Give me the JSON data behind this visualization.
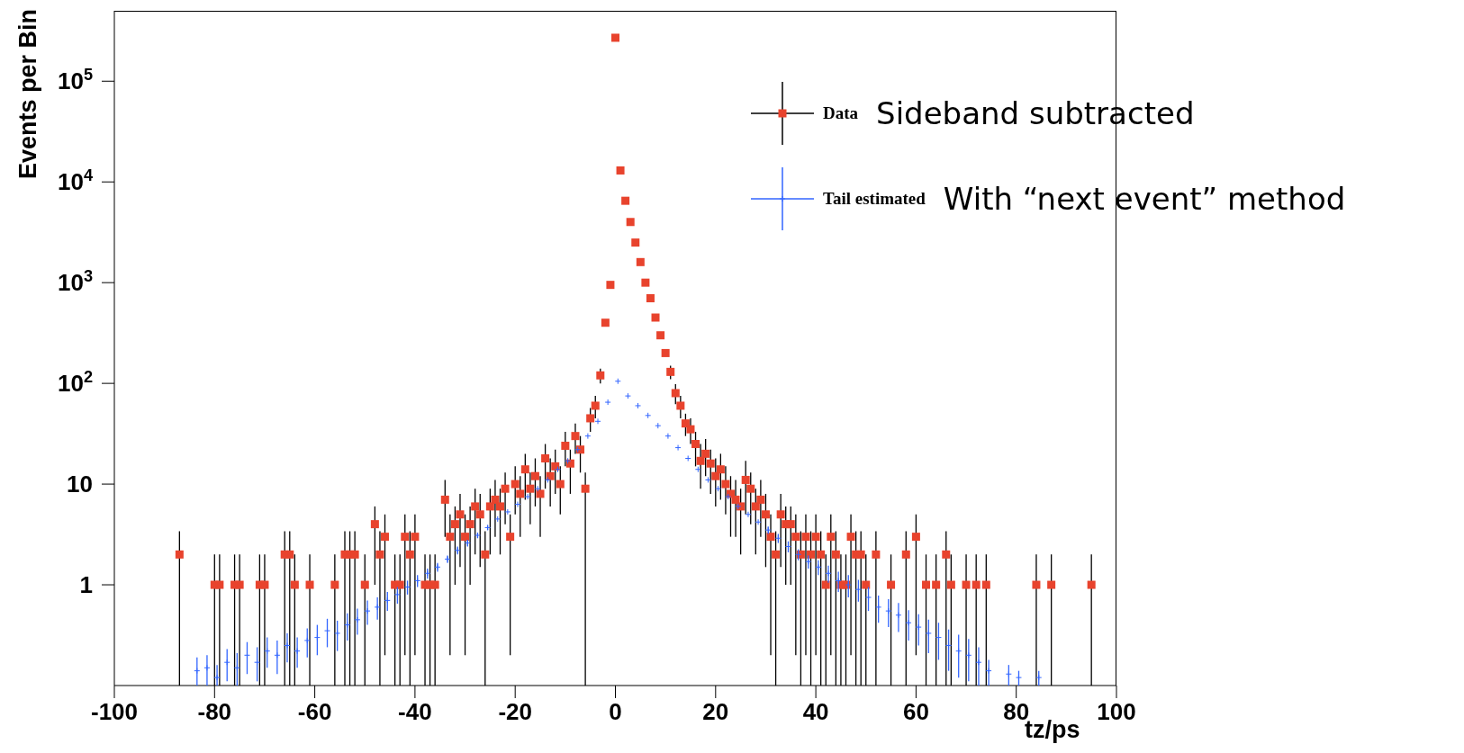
{
  "chart_data": {
    "type": "scatter",
    "xlabel": "tz/ps",
    "ylabel": "Events per Bin",
    "annotations": [
      "Sideband subtracted",
      "With “next event” method"
    ],
    "xlim": [
      -100,
      100
    ],
    "xticks": [
      -100,
      -80,
      -60,
      -40,
      -20,
      0,
      20,
      40,
      60,
      80,
      100
    ],
    "ylim": [
      0.1,
      500000
    ],
    "yticks": [
      {
        "value": 1,
        "label": "1"
      },
      {
        "value": 10,
        "label": "10"
      },
      {
        "value": 100,
        "label": "10$^{2}$"
      },
      {
        "value": 1000,
        "label": "10$^{3}$"
      },
      {
        "value": 10000,
        "label": "10$^{4}$"
      },
      {
        "value": 100000,
        "label": "10$^{5}$"
      }
    ],
    "log": "y",
    "grid": false,
    "legend": "top right",
    "series": [
      {
        "name": "Data",
        "color": "#e8432d",
        "marker": "square",
        "x": [
          -87,
          -80,
          -79,
          -76,
          -75,
          -71,
          -70,
          -66,
          -65,
          -64,
          -61,
          -56,
          -54,
          -53,
          -52,
          -50,
          -48,
          -47,
          -46,
          -44,
          -43,
          -42,
          -41,
          -40,
          -38,
          -37,
          -36,
          -34,
          -33,
          -32,
          -31,
          -30,
          -29,
          -28,
          -27,
          -26,
          -25,
          -24,
          -23,
          -22,
          -21,
          -20,
          -19,
          -18,
          -17,
          -16,
          -15,
          -14,
          -13,
          -12,
          -11,
          -10,
          -9,
          -8,
          -7,
          -6,
          -5,
          -4,
          -3,
          -2,
          -1,
          0,
          1,
          2,
          3,
          4,
          5,
          6,
          7,
          8,
          9,
          10,
          11,
          12,
          13,
          14,
          15,
          16,
          17,
          18,
          19,
          20,
          21,
          22,
          23,
          24,
          25,
          26,
          27,
          28,
          29,
          30,
          31,
          32,
          33,
          34,
          35,
          36,
          37,
          38,
          39,
          40,
          41,
          42,
          43,
          44,
          45,
          46,
          47,
          48,
          49,
          50,
          52,
          55,
          58,
          60,
          62,
          64,
          66,
          67,
          70,
          72,
          74,
          84,
          87,
          95
        ],
        "values": [
          2,
          1,
          1,
          1,
          1,
          1,
          1,
          2,
          2,
          1,
          1,
          1,
          2,
          2,
          2,
          1,
          4,
          2,
          3,
          1,
          1,
          3,
          2,
          3,
          1,
          1,
          1,
          7,
          3,
          4,
          5,
          3,
          4,
          6,
          5,
          2,
          6,
          7,
          6,
          9,
          3,
          10,
          8,
          14,
          9,
          12,
          8,
          18,
          12,
          15,
          10,
          24,
          16,
          30,
          22,
          9,
          45,
          60,
          120,
          400,
          950,
          270000,
          13000,
          6500,
          4000,
          2500,
          1600,
          1000,
          700,
          450,
          300,
          200,
          130,
          80,
          60,
          40,
          35,
          25,
          17,
          20,
          16,
          12,
          14,
          10,
          8,
          7,
          6,
          11,
          9,
          6,
          7,
          5,
          3,
          2,
          5,
          4,
          4,
          3,
          2,
          3,
          2,
          3,
          2,
          1,
          3,
          2,
          1,
          1,
          3,
          2,
          2,
          1,
          2,
          1,
          2,
          3,
          1,
          1,
          2,
          1,
          1,
          1,
          1,
          1,
          1,
          1
        ],
        "errors": [
          [
            0.1,
            3.4
          ],
          [
            0.1,
            2
          ],
          [
            0.1,
            2
          ],
          [
            0.1,
            2
          ],
          [
            0.1,
            2
          ],
          [
            0.1,
            2
          ],
          [
            0.1,
            2
          ],
          [
            0.1,
            3.4
          ],
          [
            0.1,
            3.4
          ],
          [
            0.1,
            2
          ],
          [
            0.1,
            2
          ],
          [
            0.1,
            2
          ],
          [
            0.1,
            3.4
          ],
          [
            0.1,
            3.4
          ],
          [
            0.1,
            3.4
          ],
          [
            0.1,
            2
          ],
          [
            1,
            6
          ],
          [
            0.1,
            3.4
          ],
          [
            0.2,
            5
          ],
          [
            0.1,
            2
          ],
          [
            0.1,
            2
          ],
          [
            0.2,
            5
          ],
          [
            0.1,
            3.4
          ],
          [
            0.2,
            5
          ],
          [
            0.1,
            2
          ],
          [
            0.1,
            2
          ],
          [
            0.1,
            2
          ],
          [
            3,
            11
          ],
          [
            0.2,
            5
          ],
          [
            1,
            6
          ],
          [
            1.5,
            8
          ],
          [
            0.2,
            5
          ],
          [
            1,
            6
          ],
          [
            2,
            9
          ],
          [
            1.5,
            8
          ],
          [
            0.1,
            3.4
          ],
          [
            2,
            9
          ],
          [
            3,
            11
          ],
          [
            2,
            9
          ],
          [
            4,
            13
          ],
          [
            0.2,
            5
          ],
          [
            5,
            15
          ],
          [
            3,
            12
          ],
          [
            7,
            20
          ],
          [
            4,
            13
          ],
          [
            6,
            18
          ],
          [
            3,
            12
          ],
          [
            9,
            25
          ],
          [
            6,
            18
          ],
          [
            8,
            22
          ],
          [
            5,
            15
          ],
          [
            15,
            33
          ],
          [
            8,
            22
          ],
          [
            20,
            40
          ],
          [
            13,
            30
          ],
          [
            0.1,
            13
          ],
          [
            33,
            57
          ],
          [
            45,
            75
          ],
          [
            100,
            140
          ],
          null,
          null,
          null,
          null,
          null,
          null,
          null,
          null,
          null,
          null,
          null,
          null,
          null,
          [
            110,
            150
          ],
          [
            62,
            98
          ],
          [
            45,
            75
          ],
          [
            30,
            50
          ],
          [
            25,
            45
          ],
          [
            15,
            33
          ],
          [
            9,
            25
          ],
          [
            12,
            28
          ],
          [
            8,
            22
          ],
          [
            6,
            18
          ],
          [
            7,
            20
          ],
          [
            5,
            15
          ],
          [
            3,
            12
          ],
          [
            3,
            11
          ],
          [
            2,
            9
          ],
          [
            5,
            17
          ],
          [
            4,
            13
          ],
          [
            2,
            9
          ],
          [
            3,
            11
          ],
          [
            1.5,
            8
          ],
          [
            0.2,
            5
          ],
          [
            0.1,
            3.4
          ],
          [
            1.5,
            8
          ],
          [
            1,
            6
          ],
          [
            1,
            6
          ],
          [
            0.2,
            5
          ],
          [
            0.1,
            3.4
          ],
          [
            0.2,
            5
          ],
          [
            0.1,
            3.4
          ],
          [
            0.2,
            5
          ],
          [
            0.1,
            3.4
          ],
          [
            0.1,
            2
          ],
          [
            0.2,
            5
          ],
          [
            0.1,
            3.4
          ],
          [
            0.1,
            2
          ],
          [
            0.1,
            2
          ],
          [
            0.2,
            5
          ],
          [
            0.1,
            3.4
          ],
          [
            0.1,
            3.4
          ],
          [
            0.1,
            2
          ],
          [
            0.1,
            3.4
          ],
          [
            0.1,
            2
          ],
          [
            0.1,
            3.4
          ],
          [
            0.2,
            5
          ],
          [
            0.1,
            2
          ],
          [
            0.1,
            2
          ],
          [
            0.1,
            3.4
          ],
          [
            0.1,
            2
          ],
          [
            0.1,
            2
          ],
          [
            0.1,
            2
          ],
          [
            0.1,
            2
          ],
          [
            0.1,
            2
          ],
          [
            0.1,
            2
          ],
          [
            0.1,
            2
          ]
        ]
      },
      {
        "name": "Tail estimated",
        "color": "#3366ff",
        "marker": "cross",
        "x": [
          -83.5,
          -81.5,
          -79.5,
          -77.5,
          -75.5,
          -73.5,
          -71.5,
          -69.5,
          -67.5,
          -65.5,
          -63.5,
          -61.5,
          -59.5,
          -57.5,
          -55.5,
          -53.5,
          -51.5,
          -49.5,
          -47.5,
          -45.5,
          -43.5,
          -41.5,
          -39.5,
          -37.5,
          -35.5,
          -33.5,
          -31.5,
          -29.5,
          -27.5,
          -25.5,
          -23.5,
          -21.5,
          -19.5,
          -17.5,
          -15.5,
          -13.5,
          -11.5,
          -9.5,
          -7.5,
          -5.5,
          -3.5,
          -1.5,
          0.5,
          2.5,
          4.5,
          6.5,
          8.5,
          10.5,
          12.5,
          14.5,
          16.5,
          18.5,
          20.5,
          22.5,
          24.5,
          26.5,
          28.5,
          30.5,
          32.5,
          34.5,
          36.5,
          38.5,
          40.5,
          42.5,
          44.5,
          46.5,
          48.5,
          50.5,
          52.5,
          54.5,
          56.5,
          58.5,
          60.5,
          62.5,
          64.5,
          66.5,
          68.5,
          70.5,
          72.5,
          74.5,
          78.5,
          80.5,
          84.5
        ],
        "values": [
          0.14,
          0.15,
          0.12,
          0.17,
          0.15,
          0.2,
          0.17,
          0.22,
          0.2,
          0.25,
          0.22,
          0.28,
          0.3,
          0.35,
          0.33,
          0.4,
          0.45,
          0.55,
          0.6,
          0.7,
          0.8,
          0.95,
          1.1,
          1.3,
          1.5,
          1.8,
          2.2,
          2.6,
          3.1,
          3.7,
          4.5,
          5.3,
          6.3,
          7.5,
          9,
          11,
          14,
          17,
          22,
          30,
          42,
          65,
          105,
          75,
          60,
          48,
          38,
          30,
          23,
          18,
          14,
          11,
          9,
          7.5,
          6,
          5,
          4.2,
          3.5,
          2.9,
          2.4,
          2,
          1.7,
          1.5,
          1.3,
          1.1,
          1,
          0.9,
          0.75,
          0.6,
          0.55,
          0.5,
          0.42,
          0.38,
          0.33,
          0.3,
          0.25,
          0.22,
          0.2,
          0.17,
          0.14,
          0.13,
          0.12,
          0.12
        ],
        "errors": [
          [
            0.1,
            0.19
          ],
          [
            0.1,
            0.2
          ],
          [
            0.1,
            0.16
          ],
          [
            0.11,
            0.23
          ],
          [
            0.1,
            0.21
          ],
          [
            0.13,
            0.27
          ],
          [
            0.11,
            0.24
          ],
          [
            0.15,
            0.3
          ],
          [
            0.13,
            0.28
          ],
          [
            0.17,
            0.33
          ],
          [
            0.15,
            0.3
          ],
          [
            0.19,
            0.37
          ],
          [
            0.2,
            0.4
          ],
          [
            0.24,
            0.46
          ],
          [
            0.22,
            0.44
          ],
          [
            0.28,
            0.52
          ],
          [
            0.32,
            0.58
          ],
          [
            0.4,
            0.7
          ],
          [
            0.45,
            0.75
          ],
          [
            0.55,
            0.85
          ],
          [
            0.65,
            0.95
          ],
          [
            0.8,
            1.1
          ],
          [
            0.95,
            1.25
          ],
          [
            1.15,
            1.45
          ],
          [
            1.35,
            1.65
          ],
          [
            1.65,
            1.95
          ],
          [
            2,
            2.4
          ],
          [
            2.4,
            2.8
          ],
          [
            2.9,
            3.3
          ],
          [
            3.5,
            3.9
          ],
          null,
          null,
          null,
          null,
          null,
          null,
          null,
          null,
          null,
          null,
          null,
          null,
          null,
          null,
          null,
          null,
          null,
          null,
          null,
          null,
          null,
          null,
          null,
          null,
          null,
          null,
          null,
          [
            3.2,
            3.8
          ],
          [
            2.6,
            3.2
          ],
          [
            2.1,
            2.7
          ],
          [
            1.75,
            2.25
          ],
          [
            1.45,
            1.95
          ],
          [
            1.25,
            1.75
          ],
          [
            1.05,
            1.55
          ],
          [
            0.85,
            1.35
          ],
          [
            0.75,
            1.25
          ],
          [
            0.68,
            1.12
          ],
          [
            0.55,
            0.95
          ],
          [
            0.42,
            0.78
          ],
          [
            0.38,
            0.72
          ],
          [
            0.34,
            0.66
          ],
          [
            0.28,
            0.56
          ],
          [
            0.25,
            0.51
          ],
          [
            0.21,
            0.45
          ],
          [
            0.18,
            0.42
          ],
          [
            0.14,
            0.36
          ],
          [
            0.12,
            0.32
          ],
          [
            0.11,
            0.29
          ],
          [
            0.1,
            0.24
          ],
          [
            0.1,
            0.18
          ],
          [
            0.1,
            0.16
          ],
          [
            0.1,
            0.14
          ],
          [
            0.1,
            0.14
          ]
        ]
      }
    ]
  }
}
